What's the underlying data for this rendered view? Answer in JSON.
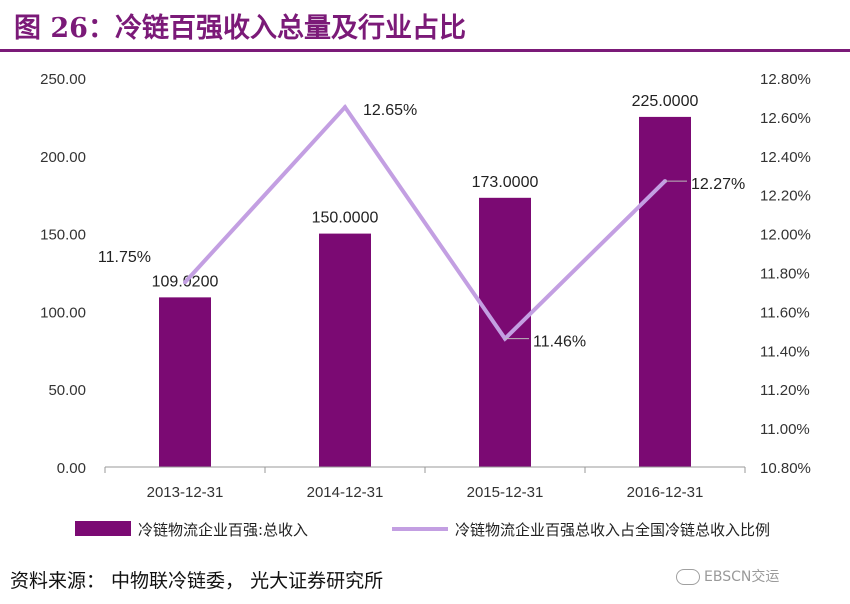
{
  "title": "图 26：冷链百强收入总量及行业占比",
  "source": "资料来源： 中物联冷链委， 光大证券研究所",
  "watermark": "EBSCN交运",
  "colors": {
    "bar": "#7b0a73",
    "line": "#c39fe2",
    "title": "#7b1a78"
  },
  "chart_data": {
    "type": "bar+line",
    "categories": [
      "2013-12-31",
      "2014-12-31",
      "2015-12-31",
      "2016-12-31"
    ],
    "series": [
      {
        "name": "冷链物流企业百强:总收入",
        "type": "bar",
        "axis": "left",
        "values": [
          109.02,
          150.0,
          173.0,
          225.0
        ],
        "labels": [
          "109.0200",
          "150.0000",
          "173.0000",
          "225.0000"
        ]
      },
      {
        "name": "冷链物流企业百强总收入占全国冷链总收入比例",
        "type": "line",
        "axis": "right",
        "values": [
          11.75,
          12.65,
          11.46,
          12.27
        ],
        "labels": [
          "11.75%",
          "12.65%",
          "11.46%",
          "12.27%"
        ]
      }
    ],
    "y_left": {
      "min": 0,
      "max": 250,
      "ticks": [
        "0.00",
        "50.00",
        "100.00",
        "150.00",
        "200.00",
        "250.00"
      ]
    },
    "y_right": {
      "min": 10.8,
      "max": 12.8,
      "ticks": [
        "10.80%",
        "11.00%",
        "11.20%",
        "11.40%",
        "11.60%",
        "11.80%",
        "12.00%",
        "12.20%",
        "12.40%",
        "12.60%",
        "12.80%"
      ]
    },
    "legend_position": "bottom",
    "grid": false
  }
}
